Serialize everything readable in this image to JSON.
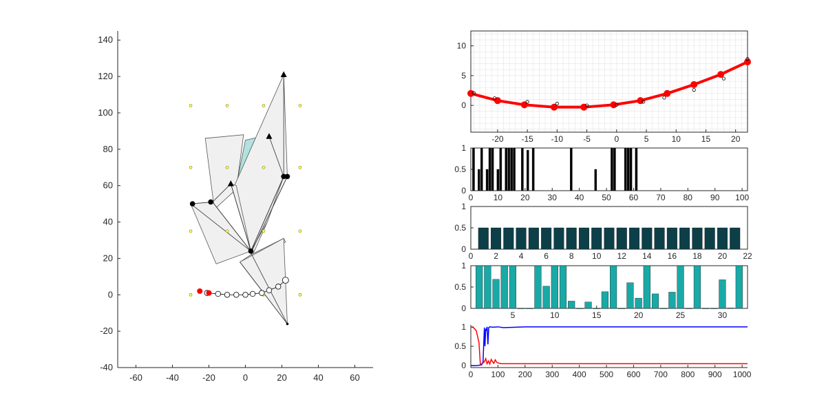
{
  "chart_data": [
    {
      "id": "mechanism",
      "type": "scatter",
      "xlim": [
        -70,
        70
      ],
      "ylim": [
        -40,
        145
      ],
      "xticks": [
        -60,
        -40,
        -20,
        0,
        20,
        40,
        60
      ],
      "yticks": [
        -40,
        -20,
        0,
        20,
        40,
        60,
        80,
        100,
        120,
        140
      ],
      "grid_points": [
        [
          -30,
          104
        ],
        [
          -10,
          104
        ],
        [
          10,
          104
        ],
        [
          30,
          104
        ],
        [
          -30,
          70
        ],
        [
          -10,
          70
        ],
        [
          10,
          70
        ],
        [
          30,
          70
        ],
        [
          -30,
          35
        ],
        [
          -10,
          35
        ],
        [
          10,
          35
        ],
        [
          30,
          35
        ],
        [
          -30,
          0
        ],
        [
          -10,
          0
        ],
        [
          10,
          0
        ],
        [
          30,
          0
        ]
      ],
      "polygons": [
        {
          "points": [
            [
              -22,
              86
            ],
            [
              -1,
              88
            ],
            [
              -5,
              58
            ],
            [
              -17,
              47
            ]
          ],
          "fill": "#f0f0f0"
        },
        {
          "points": [
            [
              0,
              85
            ],
            [
              13,
              88
            ],
            [
              20,
              66
            ],
            [
              -5,
              60
            ]
          ],
          "fill": "#b2e2df"
        },
        {
          "points": [
            [
              -1,
              61
            ],
            [
              14,
              87
            ],
            [
              21,
              65
            ],
            [
              12,
              40
            ],
            [
              4,
              22
            ]
          ],
          "fill": "#f0f0f0"
        },
        {
          "points": [
            [
              -30,
              50
            ],
            [
              -18,
              51
            ],
            [
              3,
              24
            ],
            [
              -16,
              17
            ]
          ],
          "fill": "#f0f0f0"
        },
        {
          "points": [
            [
              -6,
              60
            ],
            [
              21,
              121
            ],
            [
              23,
              65
            ],
            [
              3,
              23
            ]
          ],
          "fill": "#f0f0f0"
        },
        {
          "points": [
            [
              -5,
              60
            ],
            [
              -8,
              61
            ],
            [
              3,
              24
            ]
          ],
          "fill": "#f0f0f0"
        },
        {
          "points": [
            [
              3,
              22
            ],
            [
              21,
              31
            ],
            [
              22,
              29
            ],
            [
              -3,
              18
            ]
          ],
          "fill": "#f0f0f0"
        },
        {
          "points": [
            [
              -3,
              18
            ],
            [
              21,
              31
            ],
            [
              23,
              -16
            ]
          ],
          "fill": "#f0f0f0"
        },
        {
          "points": [
            [
              3,
              24
            ],
            [
              21,
              65
            ],
            [
              12,
              40
            ]
          ],
          "fill": "#e6e6e6"
        }
      ],
      "links": [
        [
          [
            -30,
            50
          ],
          [
            -18,
            51
          ]
        ],
        [
          [
            -18,
            51
          ],
          [
            -8,
            61
          ]
        ],
        [
          [
            -30,
            50
          ],
          [
            3,
            24
          ]
        ],
        [
          [
            -18,
            51
          ],
          [
            3,
            24
          ]
        ],
        [
          [
            -8,
            61
          ],
          [
            3,
            24
          ]
        ],
        [
          [
            13,
            87
          ],
          [
            21,
            65
          ]
        ],
        [
          [
            21,
            65
          ],
          [
            3,
            24
          ]
        ],
        [
          [
            23,
            65
          ],
          [
            3,
            23
          ]
        ],
        [
          [
            3,
            23
          ],
          [
            23,
            -16
          ]
        ],
        [
          [
            -3,
            18
          ],
          [
            23,
            -16
          ]
        ],
        [
          [
            21,
            121
          ],
          [
            21,
            65
          ]
        ]
      ],
      "joints": [
        [
          -29,
          50
        ],
        [
          -19,
          51
        ],
        [
          3,
          24
        ],
        [
          21,
          65
        ],
        [
          23,
          65
        ]
      ],
      "triangle_joints": [
        [
          -8,
          61
        ],
        [
          13,
          87
        ],
        [
          21,
          121
        ]
      ],
      "trajectory": [
        [
          -21,
          1
        ],
        [
          -15,
          0.5
        ],
        [
          -10,
          0
        ],
        [
          -5,
          0
        ],
        [
          0,
          0
        ],
        [
          4,
          0.5
        ],
        [
          9,
          1
        ],
        [
          13,
          2.5
        ],
        [
          18,
          4.5
        ],
        [
          22,
          8
        ]
      ],
      "red_points": [
        [
          -25,
          2
        ],
        [
          -20,
          1
        ]
      ]
    },
    {
      "id": "curve",
      "type": "line",
      "xlim": [
        -24.5,
        22
      ],
      "ylim": [
        -4.5,
        12.5
      ],
      "xticks": [
        -20,
        -15,
        -10,
        -5,
        0,
        5,
        10,
        15,
        20
      ],
      "yticks": [
        0,
        5,
        10
      ],
      "grid": true,
      "series": [
        {
          "x": [
            -24.5,
            -20,
            -15.5,
            -10.5,
            -5.5,
            -0.5,
            4,
            8.5,
            13,
            17.5,
            22
          ],
          "values": [
            2,
            0.8,
            0.1,
            -0.3,
            -0.3,
            0.1,
            0.8,
            2,
            3.5,
            5.2,
            7.3
          ],
          "color": "#ff0000"
        }
      ],
      "scatter": {
        "x": [
          -24,
          -20.5,
          -15,
          -10,
          -5,
          0,
          4.5,
          8,
          13,
          18,
          22
        ],
        "values": [
          2.1,
          1.2,
          0.6,
          0.3,
          0.0,
          0.1,
          0.6,
          1.3,
          2.6,
          4.5,
          7.8
        ]
      }
    },
    {
      "id": "binary-bars",
      "type": "bar",
      "xlim": [
        0,
        102
      ],
      "ylim": [
        0,
        1
      ],
      "xticks": [
        0,
        10,
        20,
        30,
        40,
        50,
        60,
        70,
        80,
        90,
        100
      ],
      "yticks": [
        0,
        0.5,
        1
      ],
      "color": "#000000",
      "bar_width": 0.8,
      "x": [
        1,
        3,
        4,
        6,
        7,
        8,
        10,
        11,
        13,
        14,
        15,
        16,
        19,
        21,
        23,
        37,
        46,
        52,
        53,
        57,
        58,
        59,
        61
      ],
      "values": [
        1,
        0.5,
        1,
        0.5,
        1,
        1,
        0.5,
        1,
        1,
        1,
        1,
        1,
        1,
        0.95,
        1,
        1,
        0.5,
        1,
        1,
        1,
        1,
        1,
        1
      ]
    },
    {
      "id": "uniform-bars",
      "type": "bar",
      "xlim": [
        0,
        22
      ],
      "ylim": [
        0,
        1
      ],
      "xticks": [
        0,
        2,
        4,
        6,
        8,
        10,
        12,
        14,
        16,
        18,
        20,
        22
      ],
      "yticks": [
        0,
        0.5,
        1
      ],
      "color": "#0d3f49",
      "bar_width": 0.8,
      "x": [
        1,
        2,
        3,
        4,
        5,
        6,
        7,
        8,
        9,
        10,
        11,
        12,
        13,
        14,
        15,
        16,
        17,
        18,
        19,
        20,
        21
      ],
      "values": [
        0.5,
        0.5,
        0.5,
        0.5,
        0.5,
        0.5,
        0.5,
        0.5,
        0.5,
        0.5,
        0.5,
        0.5,
        0.5,
        0.5,
        0.5,
        0.5,
        0.5,
        0.5,
        0.5,
        0.5,
        0.5
      ]
    },
    {
      "id": "teal-bars",
      "type": "bar",
      "xlim": [
        0,
        33
      ],
      "ylim": [
        0,
        1
      ],
      "xticks": [
        5,
        10,
        15,
        20,
        25,
        30
      ],
      "yticks": [
        0,
        0.5,
        1
      ],
      "color": "#19a9a6",
      "bar_width": 0.8,
      "x": [
        1,
        2,
        3,
        4,
        5,
        6,
        7,
        8,
        9,
        10,
        11,
        12,
        13,
        14,
        15,
        16,
        17,
        18,
        19,
        20,
        21,
        22,
        23,
        24,
        25,
        26,
        27,
        28,
        29,
        30,
        31,
        32
      ],
      "values": [
        1,
        1,
        0.68,
        1,
        1,
        0,
        0,
        1,
        0.52,
        1,
        1,
        0.17,
        0,
        0.15,
        0,
        0.39,
        1,
        0,
        0.6,
        0.24,
        1,
        0.34,
        0,
        0.38,
        1,
        0,
        1,
        0,
        0,
        0.67,
        0.01,
        1
      ]
    },
    {
      "id": "convergence",
      "type": "line",
      "xlim": [
        0,
        1020
      ],
      "ylim": [
        -0.05,
        1.05
      ],
      "xticks": [
        0,
        100,
        200,
        300,
        400,
        500,
        600,
        700,
        800,
        900,
        1000
      ],
      "yticks": [
        0,
        0.5,
        1
      ],
      "series": [
        {
          "color": "#0000ff",
          "x": [
            0,
            20,
            40,
            45,
            50,
            52,
            55,
            57,
            60,
            63,
            66,
            70,
            80,
            100,
            120,
            200,
            1020
          ],
          "values": [
            0,
            0,
            0.02,
            0.1,
            0.98,
            0.5,
            0.95,
            0.9,
            1,
            0.55,
            0.98,
            1,
            0.99,
            1,
            0.98,
            1,
            1
          ]
        },
        {
          "color": "#ff0000",
          "x": [
            0,
            10,
            20,
            30,
            35,
            40,
            50,
            55,
            60,
            65,
            70,
            75,
            80,
            85,
            90,
            95,
            100,
            110,
            120,
            500,
            1020
          ],
          "values": [
            1,
            0.98,
            0.9,
            0.6,
            0.05,
            0.04,
            0.1,
            0.18,
            0.05,
            0.12,
            0.04,
            0.16,
            0.1,
            0.06,
            0.15,
            0.09,
            0.07,
            0.05,
            0.05,
            0.05,
            0.05
          ]
        }
      ]
    }
  ]
}
